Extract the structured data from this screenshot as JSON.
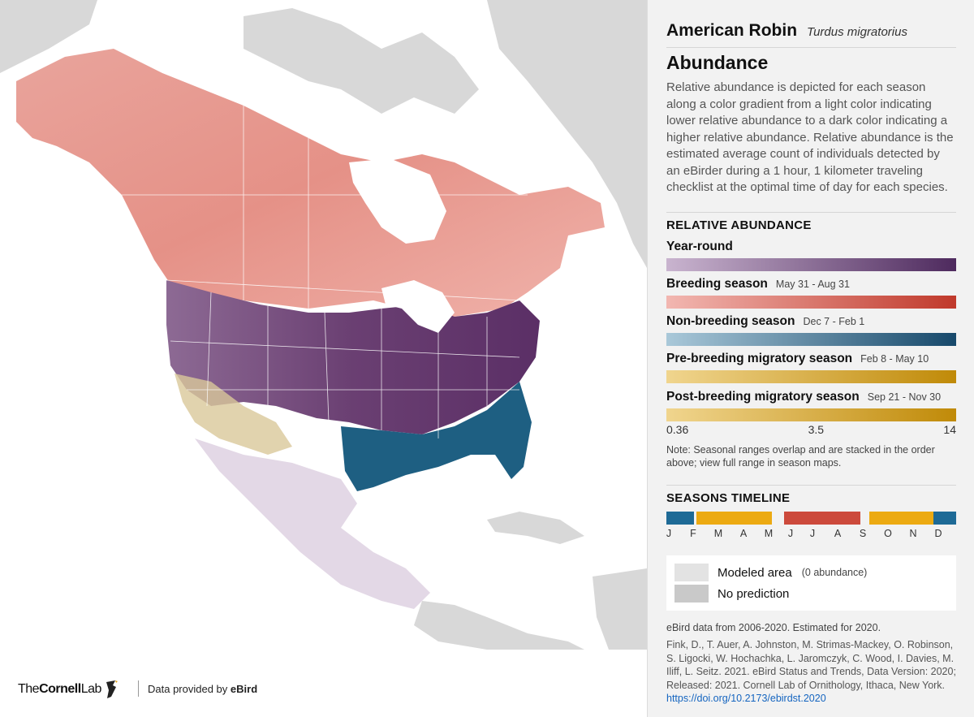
{
  "map": {
    "description_layers": [
      "year-round",
      "breeding",
      "non-breeding",
      "pre-breeding-migratory",
      "post-breeding-migratory"
    ]
  },
  "footer": {
    "logo_prefix": "The",
    "logo_bold": "Cornell",
    "logo_suffix": "Lab",
    "credit_prefix": "Data provided by ",
    "credit_bold": "eBird"
  },
  "panel": {
    "species": "American Robin",
    "scientific_name": "Turdus migratorius",
    "section_title": "Abundance",
    "description": "Relative abundance is depicted for each season along a color gradient from a light color indicating lower relative abundance to a dark color indicating a higher relative abundance. Relative abundance is the estimated average count of individuals detected by an eBirder during a 1 hour, 1 kilometer traveling checklist at the optimal time of day for each species.",
    "relative_abundance_title": "RELATIVE ABUNDANCE",
    "seasons": [
      {
        "name": "Year-round",
        "dates": "",
        "color_light": "#c9b4cf",
        "color_dark": "#4e2a5e"
      },
      {
        "name": "Breeding season",
        "dates": "May 31 - Aug 31",
        "color_light": "#f2b7b1",
        "color_dark": "#c0392b"
      },
      {
        "name": "Non-breeding season",
        "dates": "Dec 7 - Feb 1",
        "color_light": "#a9c8d9",
        "color_dark": "#17496b"
      },
      {
        "name": "Pre-breeding migratory season",
        "dates": "Feb 8 - May 10",
        "color_light": "#f0d58e",
        "color_dark": "#c08a08"
      },
      {
        "name": "Post-breeding migratory season",
        "dates": "Sep 21 - Nov 30",
        "color_light": "#f0d58e",
        "color_dark": "#c08a08"
      }
    ],
    "scale": {
      "min": "0.36",
      "mid": "3.5",
      "max": "14"
    },
    "note": "Note: Seasonal ranges overlap and are stacked in the order above; view full range in season maps.",
    "timeline_title": "SEASONS TIMELINE",
    "timeline_colors": {
      "nonbreeding": "#1e6a96",
      "migratory": "#ecaa12",
      "breeding": "#cc4a3c"
    },
    "months": [
      "J",
      "F",
      "M",
      "A",
      "M",
      "J",
      "J",
      "A",
      "S",
      "O",
      "N",
      "D"
    ],
    "legend": {
      "modeled_label": "Modeled area",
      "modeled_sub": "(0 abundance)",
      "modeled_color": "#e3e3e3",
      "no_prediction_label": "No prediction",
      "no_prediction_color": "#c9c9c9"
    },
    "data_years": "eBird data from 2006-2020. Estimated for 2020.",
    "citation": "Fink, D., T. Auer, A. Johnston, M. Strimas-Mackey, O. Robinson, S. Ligocki, W. Hochachka, L. Jaromczyk, C. Wood, I. Davies, M. Iliff, L. Seitz. 2021. eBird Status and Trends, Data Version: 2020; Released: 2021. Cornell Lab of Ornithology, Ithaca, New York. ",
    "doi_link": "https://doi.org/10.2173/ebirdst.2020"
  }
}
